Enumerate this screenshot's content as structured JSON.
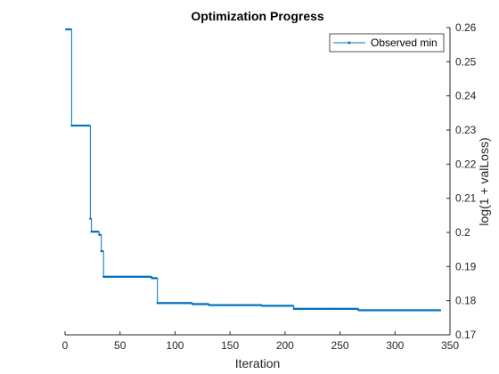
{
  "chart_data": {
    "type": "line",
    "title": "Optimization Progress",
    "xlabel": "Iteration",
    "ylabel": "log(1 + valLoss)",
    "xlim": [
      0,
      350
    ],
    "ylim": [
      0.17,
      0.26
    ],
    "xticks": [
      "0",
      "50",
      "100",
      "150",
      "200",
      "250",
      "300",
      "350"
    ],
    "yticks": [
      "0.17",
      "0.18",
      "0.19",
      "0.2",
      "0.21",
      "0.22",
      "0.23",
      "0.24",
      "0.25",
      "0.26"
    ],
    "yaxis_position": "right",
    "legend_position": "top-right",
    "grid": false,
    "series": [
      {
        "name": "Observed min",
        "color": "#0072BD",
        "marker": "dot",
        "step": true,
        "points": [
          [
            1,
            0.2595
          ],
          [
            5,
            0.2595
          ],
          [
            6,
            0.2313
          ],
          [
            22,
            0.2313
          ],
          [
            23,
            0.204
          ],
          [
            24,
            0.2002
          ],
          [
            30,
            0.2002
          ],
          [
            31,
            0.1993
          ],
          [
            32,
            0.1993
          ],
          [
            33,
            0.1945
          ],
          [
            34,
            0.1945
          ],
          [
            35,
            0.187
          ],
          [
            78,
            0.187
          ],
          [
            79,
            0.1866
          ],
          [
            83,
            0.1866
          ],
          [
            84,
            0.1793
          ],
          [
            115,
            0.1793
          ],
          [
            116,
            0.179
          ],
          [
            130,
            0.179
          ],
          [
            131,
            0.1787
          ],
          [
            178,
            0.1787
          ],
          [
            179,
            0.1785
          ],
          [
            207,
            0.1785
          ],
          [
            208,
            0.1776
          ],
          [
            266,
            0.1776
          ],
          [
            267,
            0.1772
          ],
          [
            341,
            0.1772
          ]
        ]
      }
    ]
  }
}
